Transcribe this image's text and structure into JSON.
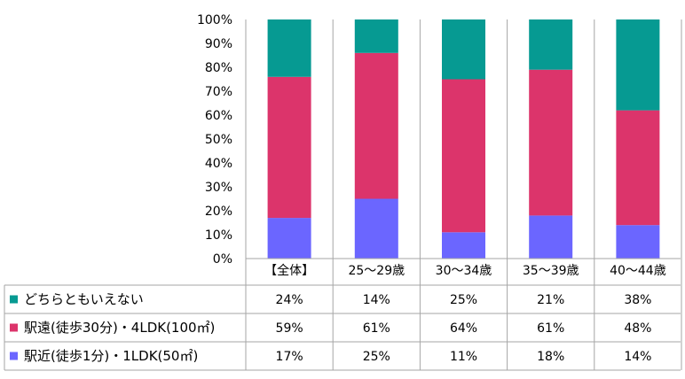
{
  "chart_data": {
    "type": "bar",
    "stacked": true,
    "percent": true,
    "title": "",
    "xlabel": "",
    "ylabel": "",
    "ylim": [
      0,
      100
    ],
    "y_ticks": [
      "0%",
      "10%",
      "20%",
      "30%",
      "40%",
      "50%",
      "60%",
      "70%",
      "80%",
      "90%",
      "100%"
    ],
    "categories": [
      "【全体】",
      "25～29歳",
      "30～34歳",
      "35～39歳",
      "40～44歳"
    ],
    "series": [
      {
        "name": "駅近(徒歩1分)・1LDK(50㎡)",
        "color": "#6b66ff",
        "values": [
          17,
          25,
          11,
          18,
          14
        ],
        "labels": [
          "17%",
          "25%",
          "11%",
          "18%",
          "14%"
        ]
      },
      {
        "name": "駅遠(徒歩30分)・4LDK(100㎡)",
        "color": "#dc346b",
        "values": [
          59,
          61,
          64,
          61,
          48
        ],
        "labels": [
          "59%",
          "61%",
          "64%",
          "61%",
          "48%"
        ]
      },
      {
        "name": "どちらともいえない",
        "color": "#069a92",
        "values": [
          24,
          14,
          25,
          21,
          38
        ],
        "labels": [
          "24%",
          "14%",
          "25%",
          "21%",
          "38%"
        ]
      }
    ],
    "table_row_order": [
      2,
      1,
      0
    ],
    "grid": false,
    "legend": "data-table"
  }
}
